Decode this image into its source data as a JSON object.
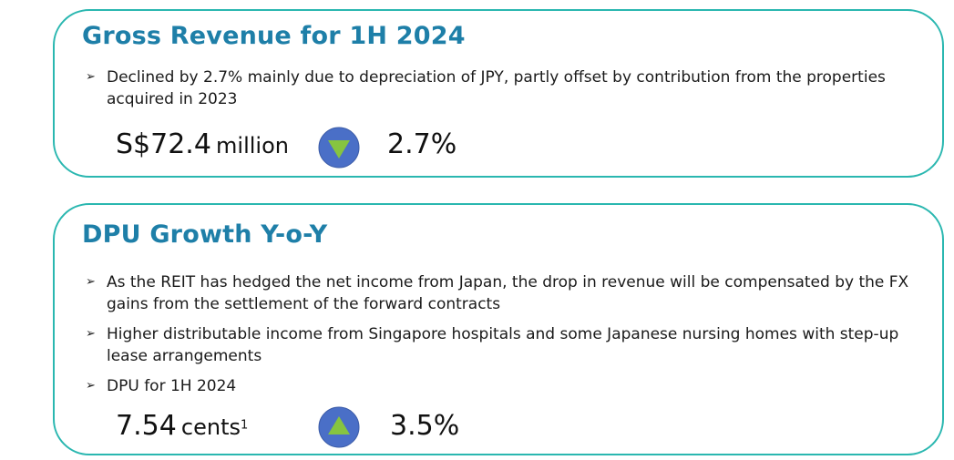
{
  "sections": [
    {
      "title": "Gross Revenue for 1H 2024",
      "bullets": [
        "Declined by 2.7% mainly due to depreciation of JPY, partly offset by contribution from the properties acquired in 2023"
      ],
      "metric": {
        "value": "S$72.4",
        "unit": "million",
        "direction": "down",
        "change": "2.7%"
      }
    },
    {
      "title": "DPU Growth Y-o-Y",
      "bullets": [
        " As the REIT has hedged the net income from Japan, the drop in revenue will be compensated by the FX gains from the settlement of the forward contracts",
        "Higher distributable income from Singapore hospitals and some Japanese nursing homes with step-up lease arrangements",
        "DPU for 1H 2024"
      ],
      "metric": {
        "value": "7.54",
        "unit": "cents",
        "footnote": "1",
        "direction": "up",
        "change": "3.5%"
      }
    }
  ],
  "bullet_marker": "➢",
  "colors": {
    "border": "#2ab7b0",
    "title": "#1e7fa8",
    "circle": "#4a6fc7",
    "arrow": "#86c440"
  }
}
